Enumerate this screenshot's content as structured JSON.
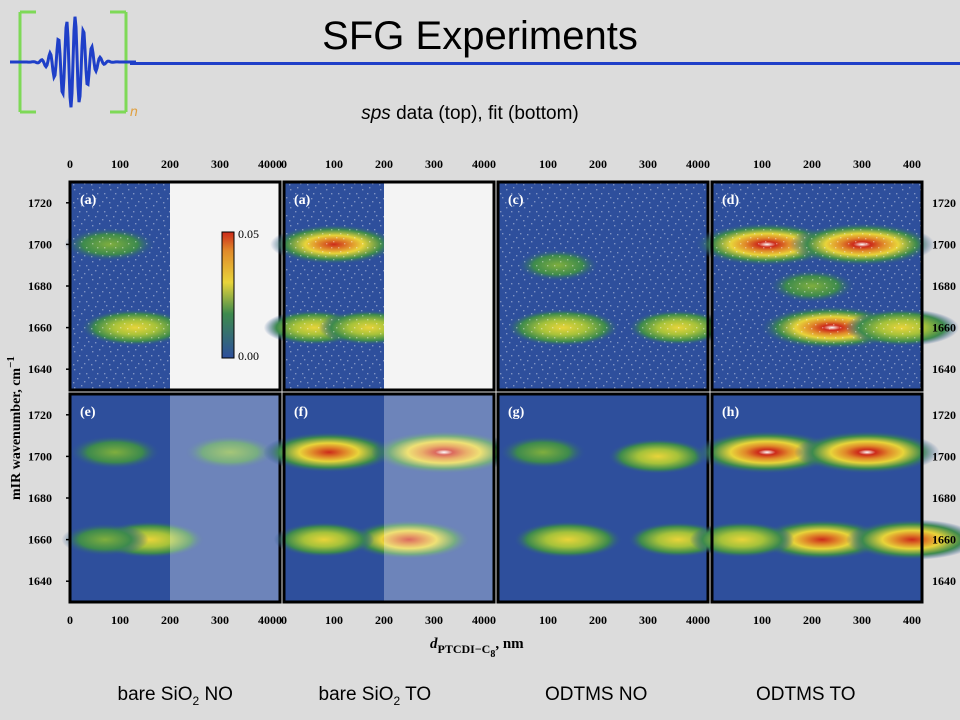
{
  "slide": {
    "title": "SFG Experiments",
    "subtitle_italic": "sps",
    "subtitle_rest": " data (top), fit (bottom)"
  },
  "logo": {
    "icon": "wave-packet-icon",
    "subscript": "n"
  },
  "chart_data": {
    "type": "heatmap",
    "y_label": "mIR wavenumber, cm",
    "y_label_exp": "−1",
    "y_ticks": [
      1720,
      1700,
      1680,
      1660,
      1640
    ],
    "ylim": [
      1630,
      1730
    ],
    "x_label_d": "d",
    "x_label_sub": "PTCDI−C",
    "x_label_subsub": "8",
    "x_label_unit": ", nm",
    "colorbar": {
      "max": "0.05",
      "min": "0.00"
    },
    "columns": [
      {
        "sample_main": "bare SiO",
        "sample_sub": "2",
        "sample_tail": " NO",
        "x_ticks": [
          "0",
          "100",
          "200",
          "300",
          "4000"
        ],
        "xlim": [
          0,
          420
        ],
        "data_xmax": 200
      },
      {
        "sample_main": "bare SiO",
        "sample_sub": "2",
        "sample_tail": " TO",
        "x_ticks": [
          "0",
          "100",
          "200",
          "300",
          "4000"
        ],
        "xlim": [
          0,
          420
        ],
        "data_xmax": 200
      },
      {
        "sample_main": "ODTMS NO",
        "sample_sub": "",
        "sample_tail": "",
        "x_ticks": [
          "100",
          "200",
          "300",
          "4000"
        ],
        "xlim": [
          0,
          420
        ],
        "data_xmax": 420
      },
      {
        "sample_main": "ODTMS TO",
        "sample_sub": "",
        "sample_tail": "",
        "x_ticks": [
          "100",
          "200",
          "300",
          "400"
        ],
        "xlim": [
          0,
          420
        ],
        "data_xmax": 420
      }
    ],
    "panels": [
      {
        "label": "(a)",
        "row": "data",
        "col": 0,
        "peaks": [
          [
            130,
            1660,
            0.55
          ],
          [
            80,
            1700,
            0.35
          ]
        ]
      },
      {
        "label": "(a)",
        "row": "data",
        "col": 1,
        "peaks": [
          [
            100,
            1700,
            0.75
          ],
          [
            60,
            1660,
            0.45
          ],
          [
            170,
            1660,
            0.45
          ]
        ]
      },
      {
        "label": "(c)",
        "row": "data",
        "col": 2,
        "peaks": [
          [
            130,
            1660,
            0.6
          ],
          [
            360,
            1660,
            0.45
          ],
          [
            120,
            1690,
            0.25
          ]
        ]
      },
      {
        "label": "(d)",
        "row": "data",
        "col": 3,
        "peaks": [
          [
            110,
            1700,
            0.95
          ],
          [
            300,
            1700,
            0.95
          ],
          [
            240,
            1660,
            0.95
          ],
          [
            380,
            1660,
            0.6
          ],
          [
            200,
            1680,
            0.3
          ]
        ]
      },
      {
        "label": "(e)",
        "row": "fit",
        "col": 0,
        "peaks": [
          [
            160,
            1660,
            0.55
          ],
          [
            90,
            1702,
            0.35
          ],
          [
            320,
            1702,
            0.35
          ],
          [
            70,
            1660,
            0.3
          ]
        ]
      },
      {
        "label": "(f)",
        "row": "fit",
        "col": 1,
        "peaks": [
          [
            90,
            1702,
            0.8
          ],
          [
            320,
            1702,
            0.95
          ],
          [
            250,
            1660,
            0.7
          ],
          [
            80,
            1660,
            0.45
          ]
        ]
      },
      {
        "label": "(g)",
        "row": "fit",
        "col": 2,
        "peaks": [
          [
            140,
            1660,
            0.55
          ],
          [
            320,
            1700,
            0.45
          ],
          [
            360,
            1660,
            0.45
          ],
          [
            90,
            1702,
            0.3
          ]
        ]
      },
      {
        "label": "(h)",
        "row": "fit",
        "col": 3,
        "peaks": [
          [
            110,
            1702,
            0.95
          ],
          [
            310,
            1702,
            0.95
          ],
          [
            220,
            1660,
            0.8
          ],
          [
            400,
            1660,
            0.8
          ],
          [
            60,
            1660,
            0.5
          ]
        ]
      }
    ],
    "colors": {
      "low": "#2e4f9c",
      "mid": "#3d8a4d",
      "high": "#e8d43a",
      "peak": "#cc2a1a",
      "sat": "#ffffff"
    }
  }
}
